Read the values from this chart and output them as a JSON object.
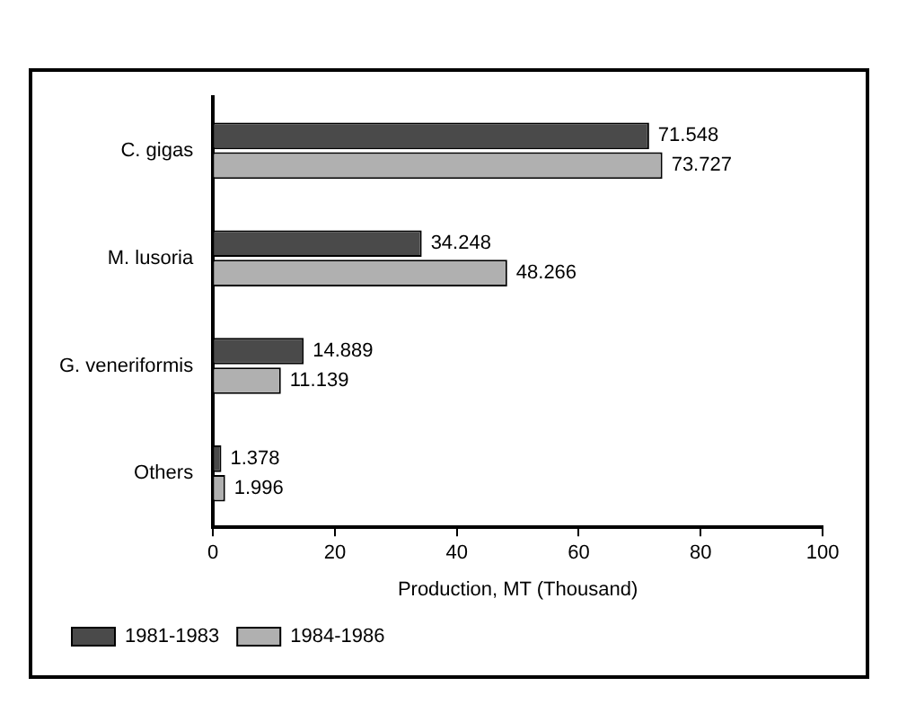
{
  "chart_data": {
    "type": "bar",
    "orientation": "horizontal",
    "xlabel": "Production, MT (Thousand)",
    "categories": [
      "C. gigas",
      "M. lusoria",
      "G. veneriformis",
      "Others"
    ],
    "series": [
      {
        "name": "1981-1983",
        "color": "#4a4a4a",
        "values": [
          71.548,
          34.248,
          14.889,
          1.378
        ]
      },
      {
        "name": "1984-1986",
        "color": "#b0b0b0",
        "values": [
          73.727,
          48.266,
          11.139,
          1.996
        ]
      }
    ],
    "xlim": [
      0,
      100
    ],
    "xticks": [
      0,
      20,
      40,
      60,
      80,
      100
    ],
    "data_labels": true,
    "grid": false,
    "legend": "bottom"
  }
}
